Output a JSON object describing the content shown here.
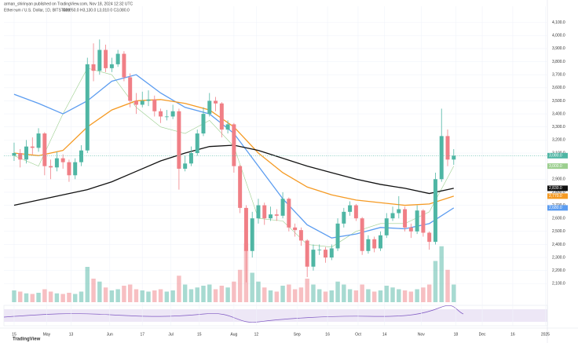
{
  "chart_data": {
    "type": "candlestick",
    "author": "arman_shirinyan published on TradingView.com, Nov 18, 2024 12:32 UTC",
    "symbol": "Ethereum / U.S. Dollar, 1D, BITSTAMP",
    "ohlc": "O3,050.0 H3,130.0 L3,010.0 C3,080.0",
    "logo": "TradingView",
    "up_color": "#4fb6a4",
    "down_color": "#f07f86",
    "grid": true,
    "x": [
      0,
      3,
      6,
      9,
      12,
      15,
      18,
      21,
      24,
      27,
      30,
      33,
      36,
      39,
      42,
      45,
      48,
      51,
      54,
      57,
      60,
      63,
      66,
      69,
      72,
      75,
      78,
      81,
      84,
      87,
      90,
      93,
      96,
      99,
      102,
      105,
      108,
      111,
      114,
      117,
      120,
      123,
      126,
      129,
      132,
      135,
      138,
      141,
      144,
      147,
      150,
      153,
      156,
      159,
      162,
      165,
      168,
      171,
      174,
      177,
      180,
      183,
      186,
      189,
      192,
      195,
      198,
      201,
      204,
      207,
      210,
      213,
      216
    ],
    "open": [
      3080,
      3100,
      3050,
      3150,
      3140,
      3250,
      3000,
      2990,
      3060,
      3030,
      2930,
      3030,
      3120,
      3780,
      3730,
      3890,
      3750,
      3780,
      3860,
      3680,
      3500,
      3470,
      3500,
      3510,
      3420,
      3380,
      3380,
      3420,
      2980,
      3020,
      3100,
      3250,
      3400,
      3500,
      3480,
      3280,
      3320,
      3000,
      2680,
      2350,
      2600,
      2700,
      2600,
      2630,
      2620,
      2750,
      2530,
      2510,
      2430,
      2230,
      2360,
      2360,
      2300,
      2370,
      2560,
      2650,
      2700,
      2600,
      2350,
      2440,
      2370,
      2470,
      2600,
      2640,
      2670,
      2530,
      2500,
      2660,
      2490,
      2420,
      2900,
      3230,
      3050
    ],
    "high": [
      3180,
      3130,
      3200,
      3220,
      3290,
      3260,
      3050,
      3110,
      3090,
      3050,
      3060,
      3160,
      3830,
      3940,
      3970,
      3930,
      3830,
      3890,
      3880,
      3710,
      3560,
      3570,
      3580,
      3540,
      3440,
      3430,
      3470,
      3440,
      3080,
      3150,
      3280,
      3450,
      3560,
      3530,
      3490,
      3350,
      3330,
      3010,
      2700,
      2650,
      2750,
      2720,
      2690,
      2670,
      2800,
      2760,
      2560,
      2530,
      2440,
      2400,
      2400,
      2380,
      2400,
      2600,
      2680,
      2730,
      2710,
      2610,
      2470,
      2460,
      2500,
      2640,
      2690,
      2770,
      2690,
      2560,
      2700,
      2670,
      2500,
      2950,
      3440,
      3280,
      3130
    ],
    "low": [
      3040,
      2990,
      3020,
      3090,
      3110,
      2930,
      2900,
      2960,
      2980,
      2880,
      2900,
      3000,
      3100,
      3650,
      3700,
      3720,
      3720,
      3760,
      3650,
      3450,
      3400,
      3450,
      3460,
      3380,
      3330,
      3350,
      3360,
      2820,
      2960,
      3000,
      3080,
      3230,
      3380,
      3420,
      3220,
      3250,
      2950,
      2640,
      2110,
      2300,
      2560,
      2550,
      2580,
      2580,
      2600,
      2500,
      2460,
      2390,
      2150,
      2200,
      2320,
      2260,
      2280,
      2350,
      2530,
      2620,
      2580,
      2320,
      2330,
      2340,
      2350,
      2450,
      2580,
      2600,
      2500,
      2450,
      2480,
      2460,
      2360,
      2400,
      2880,
      3000,
      3010
    ],
    "close": [
      3100,
      3050,
      3150,
      3140,
      3250,
      3000,
      2990,
      3060,
      3030,
      2930,
      3030,
      3120,
      3780,
      3730,
      3890,
      3750,
      3780,
      3860,
      3680,
      3500,
      3470,
      3500,
      3510,
      3420,
      3380,
      3380,
      3420,
      2980,
      3020,
      3100,
      3250,
      3400,
      3500,
      3480,
      3280,
      3320,
      3000,
      2680,
      2350,
      2600,
      2700,
      2600,
      2630,
      2620,
      2750,
      2530,
      2510,
      2430,
      2230,
      2360,
      2360,
      2300,
      2370,
      2560,
      2650,
      2700,
      2600,
      2350,
      2440,
      2370,
      2470,
      2600,
      2640,
      2670,
      2530,
      2500,
      2660,
      2490,
      2420,
      2900,
      3230,
      3050,
      3080
    ],
    "close_label": "3,080.0",
    "volume": [
      20,
      18,
      15,
      14,
      16,
      22,
      18,
      15,
      14,
      16,
      14,
      18,
      60,
      40,
      35,
      25,
      20,
      22,
      28,
      30,
      22,
      20,
      18,
      20,
      22,
      18,
      20,
      45,
      30,
      22,
      25,
      28,
      30,
      22,
      28,
      25,
      35,
      55,
      100,
      50,
      35,
      25,
      20,
      18,
      28,
      30,
      22,
      25,
      40,
      30,
      22,
      18,
      20,
      35,
      30,
      22,
      20,
      30,
      22,
      18,
      20,
      28,
      25,
      22,
      20,
      18,
      22,
      25,
      30,
      70,
      95,
      55,
      30
    ],
    "volume_max": 100,
    "series": [
      {
        "color": "#9ccf8f",
        "x": [
          0,
          12,
          24,
          36,
          48,
          60,
          72,
          84,
          96,
          108,
          120,
          132,
          144,
          156,
          168,
          180,
          192,
          204,
          216
        ],
        "values": [
          3080,
          3000,
          3400,
          3750,
          3700,
          3450,
          3300,
          3250,
          3350,
          3150,
          2600,
          2580,
          2400,
          2380,
          2500,
          2560,
          2560,
          2650,
          3000
        ],
        "last_label": "3,000.0"
      },
      {
        "color": "#5b9cf0",
        "x": [
          0,
          12,
          24,
          36,
          48,
          60,
          72,
          84,
          96,
          108,
          120,
          132,
          144,
          156,
          168,
          180,
          192,
          204,
          216
        ],
        "values": [
          3550,
          3480,
          3400,
          3500,
          3650,
          3700,
          3560,
          3450,
          3400,
          3250,
          3000,
          2750,
          2550,
          2450,
          2480,
          2530,
          2520,
          2560,
          2680
        ],
        "last_label": "2,680.0"
      },
      {
        "color": "#f59a23",
        "x": [
          0,
          12,
          24,
          36,
          48,
          60,
          72,
          84,
          96,
          108,
          120,
          132,
          144,
          156,
          168,
          180,
          192,
          204,
          216
        ],
        "values": [
          3100,
          3080,
          3120,
          3300,
          3430,
          3500,
          3510,
          3480,
          3430,
          3300,
          3100,
          2950,
          2840,
          2780,
          2740,
          2720,
          2700,
          2710,
          2770
        ],
        "last_label": "2,770.0"
      },
      {
        "color": "#111111",
        "x": [
          0,
          12,
          24,
          36,
          48,
          60,
          72,
          84,
          96,
          108,
          120,
          132,
          144,
          156,
          168,
          180,
          192,
          204,
          216
        ],
        "values": [
          2700,
          2740,
          2780,
          2820,
          2880,
          2960,
          3040,
          3100,
          3150,
          3160,
          3120,
          3060,
          3000,
          2950,
          2900,
          2860,
          2830,
          2790,
          2830
        ],
        "last_label": "2,830.0"
      }
    ],
    "xlim": [
      -5,
      262
    ],
    "xticks": [
      {
        "value": 0,
        "label": "15"
      },
      {
        "value": 16,
        "label": "May"
      },
      {
        "value": 28,
        "label": "13"
      },
      {
        "value": 47,
        "label": "Jun"
      },
      {
        "value": 63,
        "label": "17"
      },
      {
        "value": 77,
        "label": "Jul"
      },
      {
        "value": 91,
        "label": "15"
      },
      {
        "value": 108,
        "label": "Aug"
      },
      {
        "value": 119,
        "label": "12"
      },
      {
        "value": 139,
        "label": "Sep"
      },
      {
        "value": 154,
        "label": "16"
      },
      {
        "value": 169,
        "label": "Oct"
      },
      {
        "value": 182,
        "label": "14"
      },
      {
        "value": 200,
        "label": "Nov"
      },
      {
        "value": 217,
        "label": "18"
      },
      {
        "value": 230,
        "label": "Dec"
      },
      {
        "value": 245,
        "label": "16"
      },
      {
        "value": 261,
        "label": "2025"
      }
    ],
    "ylim": [
      2000,
      4200
    ],
    "yticks": [
      {
        "value": 2100,
        "label": "2,100.0"
      },
      {
        "value": 2200,
        "label": "2,200.0"
      },
      {
        "value": 2300,
        "label": "2,300.0"
      },
      {
        "value": 2400,
        "label": "2,400.0"
      },
      {
        "value": 2500,
        "label": "2,500.0"
      },
      {
        "value": 2600,
        "label": "2,600.0"
      },
      {
        "value": 2700,
        "label": "2,700.0"
      },
      {
        "value": 2800,
        "label": "2,800.0"
      },
      {
        "value": 2900,
        "label": "2,900.0"
      },
      {
        "value": 3000,
        "label": "3,000.0"
      },
      {
        "value": 3100,
        "label": "3,100.0"
      },
      {
        "value": 3200,
        "label": "3,200.0"
      },
      {
        "value": 3300,
        "label": "3,300.0"
      },
      {
        "value": 3400,
        "label": "3,400.0"
      },
      {
        "value": 3500,
        "label": "3,500.0"
      },
      {
        "value": 3600,
        "label": "3,600.0"
      },
      {
        "value": 3700,
        "label": "3,700.0"
      },
      {
        "value": 3800,
        "label": "3,800.0"
      },
      {
        "value": 3900,
        "label": "3,900.0"
      },
      {
        "value": 4000,
        "label": "4,000.0"
      },
      {
        "value": 4100,
        "label": "4,100.0"
      }
    ]
  }
}
